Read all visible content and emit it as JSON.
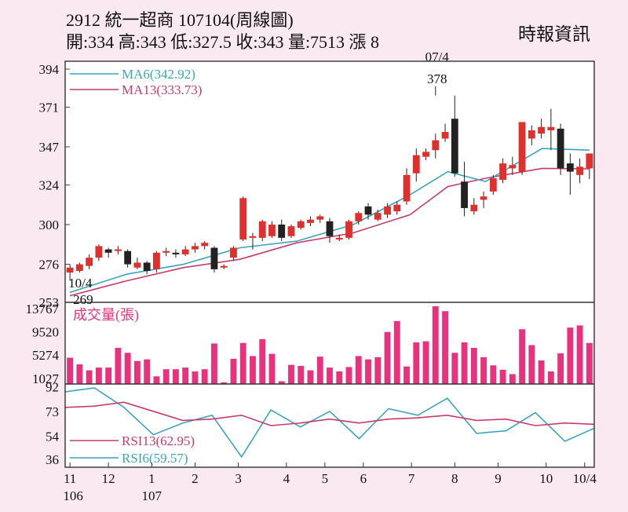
{
  "header": {
    "title": "2912  統一超商 107104(周線圖)",
    "stats": "開:334 高:343 低:327.5 收:343 量:7513 漲 8",
    "source": "時報資訊"
  },
  "colors": {
    "up": "#e0302e",
    "down": "#222222",
    "ma6": "#3aa6b9",
    "ma13": "#c83a6e",
    "volume": "#e8327e",
    "rsi13": "#c83a6e",
    "rsi6": "#3aa6b9"
  },
  "chart_data": [
    {
      "type": "candlestick",
      "ylim": [
        253,
        394
      ],
      "yticks": [
        "394",
        "371",
        "347",
        "324",
        "300",
        "276",
        "253"
      ],
      "xticks": [
        "11",
        "12",
        "1",
        "2",
        "3",
        "4",
        "5",
        "6",
        "7",
        "8",
        "9",
        "10",
        "10/4"
      ],
      "xticks_year": [
        "106",
        "107"
      ],
      "legend": [
        "MA6(342.92)",
        "MA13(333.73)"
      ],
      "annotations": [
        {
          "label_top": "07/4",
          "label_bottom": "378",
          "index": 38
        },
        {
          "label_top": "10/4",
          "label_bottom": "269",
          "index": 0
        }
      ],
      "ohlc": [
        [
          271,
          274,
          269,
          276
        ],
        [
          272,
          276,
          271,
          277
        ],
        [
          275,
          280,
          273,
          282
        ],
        [
          280,
          287,
          278,
          288
        ],
        [
          285,
          283,
          280,
          286
        ],
        [
          284,
          285,
          282,
          287
        ],
        [
          284,
          276,
          274,
          285
        ],
        [
          274,
          277,
          273,
          280
        ],
        [
          277,
          272,
          270,
          278
        ],
        [
          273,
          283,
          271,
          284
        ],
        [
          283,
          284,
          281,
          286
        ],
        [
          283,
          282,
          280,
          285
        ],
        [
          282,
          285,
          281,
          287
        ],
        [
          285,
          287,
          283,
          289
        ],
        [
          287,
          289,
          285,
          290
        ],
        [
          286,
          273,
          271,
          287
        ],
        [
          274,
          275,
          273,
          276
        ],
        [
          280,
          286,
          278,
          287
        ],
        [
          291,
          316,
          290,
          317
        ],
        [
          292,
          293,
          285,
          295
        ],
        [
          292,
          302,
          290,
          303
        ],
        [
          293,
          300,
          292,
          302
        ],
        [
          300,
          292,
          290,
          303
        ],
        [
          293,
          299,
          292,
          300
        ],
        [
          298,
          302,
          297,
          303
        ],
        [
          301,
          303,
          299,
          305
        ],
        [
          303,
          305,
          301,
          306
        ],
        [
          302,
          293,
          289,
          304
        ],
        [
          291,
          292,
          290,
          294
        ],
        [
          292,
          302,
          291,
          303
        ],
        [
          302,
          307,
          300,
          308
        ],
        [
          311,
          306,
          303,
          313
        ],
        [
          303,
          307,
          302,
          309
        ],
        [
          306,
          311,
          304,
          313
        ],
        [
          308,
          312,
          306,
          314
        ],
        [
          314,
          330,
          312,
          334
        ],
        [
          331,
          342,
          326,
          346
        ],
        [
          341,
          344,
          339,
          346
        ],
        [
          345,
          351,
          340,
          355
        ],
        [
          352,
          356,
          350,
          361
        ],
        [
          364,
          331,
          329,
          378
        ],
        [
          326,
          310,
          305,
          338
        ],
        [
          308,
          312,
          306,
          316
        ],
        [
          315,
          317,
          310,
          320
        ],
        [
          320,
          328,
          318,
          330
        ],
        [
          327,
          337,
          325,
          340
        ],
        [
          334,
          336,
          330,
          341
        ],
        [
          332,
          362,
          330,
          362
        ],
        [
          352,
          357,
          348,
          360
        ],
        [
          355,
          359,
          352,
          364
        ],
        [
          357,
          359,
          345,
          370
        ],
        [
          358,
          334,
          330,
          361
        ],
        [
          337,
          332,
          318,
          343
        ],
        [
          330,
          335,
          325,
          340
        ],
        [
          334,
          343,
          327.5,
          343
        ]
      ],
      "ma6": [
        [
          0,
          259
        ],
        [
          6,
          270
        ],
        [
          12,
          276
        ],
        [
          18,
          286
        ],
        [
          24,
          290
        ],
        [
          30,
          300
        ],
        [
          36,
          318
        ],
        [
          40,
          332
        ],
        [
          44,
          326
        ],
        [
          50,
          346
        ],
        [
          55,
          345
        ]
      ],
      "ma13": [
        [
          0,
          257
        ],
        [
          6,
          266
        ],
        [
          12,
          274
        ],
        [
          18,
          279
        ],
        [
          24,
          289
        ],
        [
          30,
          295
        ],
        [
          36,
          306
        ],
        [
          40,
          323
        ],
        [
          44,
          328
        ],
        [
          50,
          334
        ],
        [
          55,
          333.7
        ]
      ]
    },
    {
      "type": "bar",
      "title": "成交量(張)",
      "ylim": [
        0,
        13767
      ],
      "yticks": [
        "13767",
        "9520",
        "5274",
        "1027"
      ],
      "values": [
        4800,
        3600,
        2500,
        3000,
        3000,
        6600,
        5700,
        4200,
        4500,
        1400,
        2700,
        2700,
        3000,
        2300,
        2700,
        7400,
        300,
        4600,
        7500,
        5100,
        8200,
        5500,
        500,
        3500,
        3300,
        2500,
        5000,
        3000,
        2300,
        3100,
        5100,
        4500,
        4900,
        9500,
        11500,
        3200,
        7600,
        7800,
        14200,
        13300,
        5700,
        7600,
        6600,
        4900,
        3400,
        2600,
        1800,
        10000,
        7100,
        4300,
        2300,
        5600,
        10300,
        10700,
        7500
      ]
    },
    {
      "type": "line",
      "ylim": [
        30,
        94
      ],
      "yticks": [
        "92",
        "73",
        "54",
        "36"
      ],
      "legend": [
        "RSI13(62.95)",
        "RSI6(59.57)"
      ],
      "rsi13": [
        [
          0,
          76
        ],
        [
          3,
          77
        ],
        [
          6,
          80
        ],
        [
          9,
          73
        ],
        [
          12,
          66
        ],
        [
          15,
          67
        ],
        [
          18,
          70
        ],
        [
          21,
          62
        ],
        [
          24,
          64
        ],
        [
          27,
          67
        ],
        [
          30,
          64
        ],
        [
          33,
          67
        ],
        [
          36,
          68
        ],
        [
          39,
          70
        ],
        [
          42,
          66
        ],
        [
          45,
          67
        ],
        [
          48,
          62
        ],
        [
          51,
          64
        ],
        [
          54,
          63
        ]
      ],
      "rsi6": [
        [
          0,
          88
        ],
        [
          3,
          91
        ],
        [
          6,
          76
        ],
        [
          9,
          55
        ],
        [
          12,
          64
        ],
        [
          15,
          70
        ],
        [
          18,
          38
        ],
        [
          21,
          74
        ],
        [
          24,
          61
        ],
        [
          27,
          73
        ],
        [
          30,
          52
        ],
        [
          33,
          75
        ],
        [
          36,
          70
        ],
        [
          39,
          83
        ],
        [
          42,
          56
        ],
        [
          45,
          58
        ],
        [
          48,
          72
        ],
        [
          51,
          50
        ],
        [
          54,
          60
        ]
      ]
    }
  ]
}
